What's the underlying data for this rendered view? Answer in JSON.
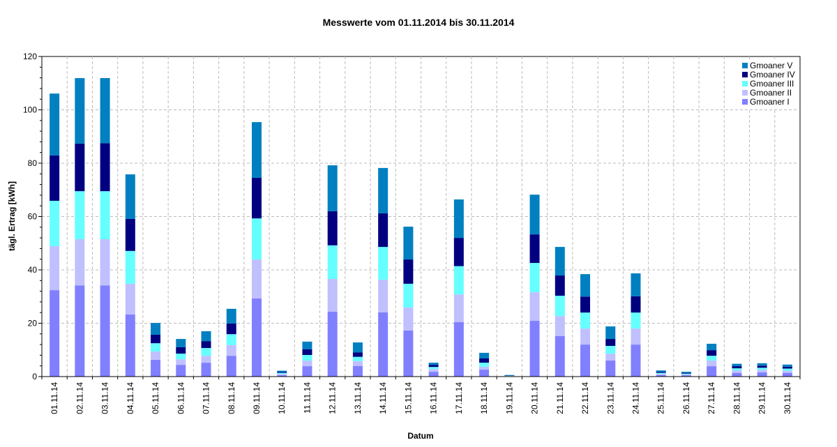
{
  "chart_data": {
    "type": "bar",
    "stacked": true,
    "title": "Messwerte vom 01.11.2014 bis 30.11.2014",
    "xlabel": "Datum",
    "ylabel": "tägl. Ertrag [kWh]",
    "ylim": [
      0,
      120
    ],
    "yticks": [
      0,
      20,
      40,
      60,
      80,
      100,
      120
    ],
    "grid": true,
    "legend_position": "top-right",
    "categories": [
      "01.11.14",
      "02.11.14",
      "03.11.14",
      "04.11.14",
      "05.11.14",
      "06.11.14",
      "07.11.14",
      "08.11.14",
      "09.11.14",
      "10.11.14",
      "11.11.14",
      "12.11.14",
      "13.11.14",
      "14.11.14",
      "15.11.14",
      "16.11.14",
      "17.11.14",
      "18.11.14",
      "19.11.14",
      "20.11.14",
      "21.11.14",
      "22.11.14",
      "23.11.14",
      "24.11.14",
      "25.11.14",
      "26.11.14",
      "27.11.14",
      "28.11.14",
      "29.11.14",
      "30.11.14"
    ],
    "series": [
      {
        "name": "Gmoaner I",
        "color": "#8080ff",
        "values": [
          32.4,
          34.2,
          34.2,
          23.3,
          6.3,
          4.4,
          5.2,
          7.8,
          29.3,
          0.5,
          3.9,
          24.3,
          4.0,
          24.1,
          17.3,
          1.8,
          20.4,
          2.6,
          0.1,
          20.9,
          15.2,
          12.0,
          6.0,
          12.0,
          0.6,
          0.5,
          3.9,
          1.4,
          1.6,
          1.4
        ]
      },
      {
        "name": "Gmoaner II",
        "color": "#c0c0ff",
        "values": [
          16.5,
          17.3,
          17.3,
          11.5,
          3.1,
          2.1,
          2.6,
          4.0,
          14.6,
          0.5,
          2.1,
          12.3,
          1.8,
          12.2,
          8.6,
          1.0,
          10.4,
          1.1,
          0.1,
          10.7,
          7.5,
          6.0,
          2.6,
          6.0,
          0.4,
          0.3,
          2.1,
          0.9,
          0.9,
          0.8
        ]
      },
      {
        "name": "Gmoaner III",
        "color": "#66ffff",
        "values": [
          17.0,
          18.0,
          18.0,
          12.3,
          3.1,
          2.1,
          2.9,
          4.1,
          15.4,
          0.4,
          2.1,
          12.6,
          1.6,
          12.3,
          8.9,
          0.8,
          10.6,
          1.5,
          0.1,
          11.0,
          7.6,
          6.0,
          2.9,
          6.0,
          0.4,
          0.3,
          1.8,
          0.8,
          0.8,
          0.8
        ]
      },
      {
        "name": "Gmoaner IV",
        "color": "#000080",
        "values": [
          17.0,
          17.8,
          18.0,
          12.0,
          3.2,
          2.4,
          2.6,
          4.0,
          15.2,
          0.3,
          2.1,
          12.8,
          1.7,
          12.6,
          9.1,
          0.8,
          10.6,
          1.6,
          0.1,
          10.7,
          7.6,
          6.0,
          2.6,
          6.1,
          0.4,
          0.3,
          2.1,
          0.8,
          0.8,
          0.7
        ]
      },
      {
        "name": "Gmoaner V",
        "color": "#0080c0",
        "values": [
          23.2,
          24.6,
          24.4,
          16.7,
          4.4,
          3.1,
          3.7,
          5.5,
          20.9,
          0.5,
          2.9,
          17.2,
          3.7,
          17.0,
          12.3,
          0.8,
          14.4,
          2.1,
          0.2,
          14.9,
          10.7,
          8.4,
          4.7,
          8.6,
          0.5,
          0.4,
          2.4,
          0.9,
          0.9,
          0.8
        ]
      }
    ]
  }
}
